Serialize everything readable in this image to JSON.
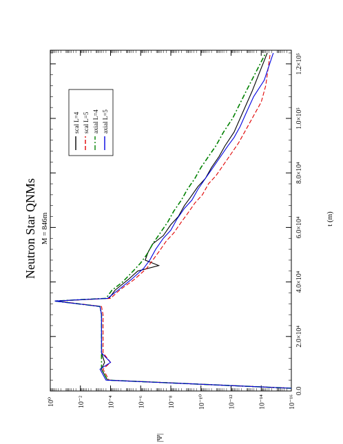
{
  "chart_data": {
    "type": "line",
    "orientation": "rotated-90-ccw",
    "title": "Neutron Star QNMs",
    "subtitle": "M = 846m",
    "xlabel": "t (m)",
    "ylabel": "|Ψ|",
    "xlim": [
      0,
      125000
    ],
    "ylim_log10": [
      -16,
      0
    ],
    "y_scale": "log",
    "x_tick_labels": [
      "0.0",
      "2.0×10⁴",
      "4.0×10⁴",
      "6.0×10⁴",
      "8.0×10⁴",
      "1.0×10⁵",
      "1.2×10⁵"
    ],
    "x_tick_values": [
      0,
      20000,
      40000,
      60000,
      80000,
      100000,
      120000
    ],
    "y_tick_labels": [
      "10⁰",
      "10⁻²",
      "10⁻⁴",
      "10⁻⁶",
      "10⁻⁸",
      "10⁻¹⁰",
      "10⁻¹²",
      "10⁻¹⁴",
      "10⁻¹⁶"
    ],
    "y_tick_values_log10": [
      0,
      -2,
      -4,
      -6,
      -8,
      -10,
      -12,
      -14,
      -16
    ],
    "legend_placement": "top-left (rotated view)",
    "series": [
      {
        "name": "scal L=4",
        "color": "#000000",
        "dash": "solid",
        "x": [
          1000,
          4000,
          8000,
          10500,
          14000,
          18000,
          21000,
          24000,
          28000,
          31000,
          33000,
          34000,
          37000,
          41000,
          44000,
          46000,
          48000,
          51000,
          54000,
          57000,
          61000,
          64000,
          68000,
          71000,
          75000,
          78000,
          82000,
          86000,
          90000,
          95000,
          100000,
          110000,
          124000
        ],
        "y": [
          -16,
          -3.8,
          -3.4,
          -3.6,
          -3.4,
          -3.4,
          -3.4,
          -3.4,
          -3.4,
          -3.3,
          -0.3,
          -3.9,
          -4.3,
          -5.2,
          -5.8,
          -7.2,
          -6.3,
          -6.5,
          -6.8,
          -7.5,
          -8.0,
          -8.5,
          -8.9,
          -9.3,
          -9.8,
          -10.3,
          -10.7,
          -11.2,
          -11.6,
          -12.2,
          -12.6,
          -13.4,
          -14.4
        ]
      },
      {
        "name": "scal L=5",
        "color": "#e00000",
        "dash": "dashed",
        "x": [
          1000,
          4000,
          8000,
          10500,
          14000,
          18000,
          21000,
          24000,
          28000,
          31000,
          33000,
          34000,
          37000,
          41000,
          45000,
          48000,
          51000,
          55000,
          58000,
          62000,
          65000,
          69000,
          72000,
          76000,
          79000,
          83000,
          87000,
          91000,
          96000,
          101000,
          106000,
          112000,
          124000
        ],
        "y": [
          -16,
          -3.9,
          -3.5,
          -4.0,
          -3.5,
          -3.5,
          -3.5,
          -3.5,
          -3.5,
          -3.4,
          -0.4,
          -4.0,
          -4.6,
          -5.6,
          -6.4,
          -6.8,
          -7.2,
          -7.7,
          -8.2,
          -8.7,
          -9.1,
          -9.6,
          -10.1,
          -10.5,
          -11.0,
          -11.5,
          -12.0,
          -12.5,
          -13.0,
          -13.5,
          -14.0,
          -14.3,
          -14.6
        ]
      },
      {
        "name": "axial L=4",
        "color": "#008000",
        "dash": "dash-dot",
        "x": [
          1000,
          4000,
          8000,
          10500,
          14000,
          18000,
          21000,
          24000,
          28000,
          31000,
          33000,
          34000,
          37000,
          40000,
          44000,
          47000,
          50000,
          54000,
          58000,
          62000,
          66000,
          70000,
          74000,
          78000,
          82000,
          86000,
          90000,
          95000,
          100000,
          110000,
          124000
        ],
        "y": [
          -16,
          -3.8,
          -3.4,
          -3.4,
          -3.4,
          -3.4,
          -3.4,
          -3.4,
          -3.4,
          -3.3,
          -0.3,
          -3.7,
          -4.1,
          -4.8,
          -5.5,
          -6.0,
          -6.4,
          -6.8,
          -7.3,
          -7.8,
          -8.2,
          -8.7,
          -9.1,
          -9.6,
          -10.0,
          -10.5,
          -11.0,
          -11.5,
          -12.1,
          -13.0,
          -14.3
        ]
      },
      {
        "name": "axial L=5",
        "color": "#0000e0",
        "dash": "solid",
        "x": [
          1000,
          4000,
          8000,
          10500,
          14000,
          18000,
          21000,
          24000,
          28000,
          31000,
          33000,
          34000,
          37000,
          41000,
          45000,
          48000,
          52000,
          56000,
          59000,
          63000,
          67000,
          70000,
          74000,
          78000,
          82000,
          86000,
          90000,
          93000,
          97000,
          102000,
          108000,
          114000,
          124000
        ],
        "y": [
          -16,
          -3.7,
          -3.3,
          -4.0,
          -3.4,
          -3.4,
          -3.4,
          -3.4,
          -3.4,
          -3.3,
          -0.3,
          -3.8,
          -4.5,
          -5.4,
          -6.2,
          -6.6,
          -7.0,
          -7.5,
          -8.0,
          -8.4,
          -8.9,
          -9.4,
          -9.8,
          -10.3,
          -10.8,
          -11.3,
          -11.8,
          -12.2,
          -12.6,
          -13.0,
          -13.5,
          -14.2,
          -14.8
        ]
      }
    ]
  }
}
